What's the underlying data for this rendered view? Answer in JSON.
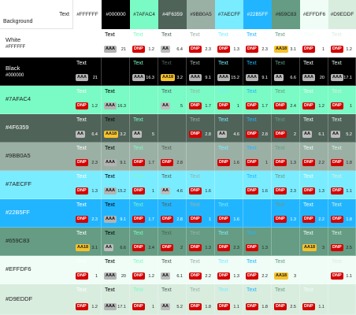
{
  "header": {
    "text_label": "Text",
    "background_label": "Background"
  },
  "colors": [
    {
      "hex": "#FFFFFF",
      "name": "White",
      "label": "#FFFFFF",
      "fg": "#222222"
    },
    {
      "hex": "#000000",
      "name": "Black",
      "label": "#000000",
      "fg": "#ffffff"
    },
    {
      "hex": "#7AFAC4",
      "name": "#7AFAC4",
      "label": "",
      "fg": "#222222"
    },
    {
      "hex": "#4F6359",
      "name": "#4F6359",
      "label": "",
      "fg": "#ffffff"
    },
    {
      "hex": "#9BB0A5",
      "name": "#9BB0A5",
      "label": "",
      "fg": "#222222"
    },
    {
      "hex": "#7AECFF",
      "name": "#7AECFF",
      "label": "",
      "fg": "#222222"
    },
    {
      "hex": "#22B5FF",
      "name": "#22B5FF",
      "label": "",
      "fg": "#ffffff"
    },
    {
      "hex": "#659C83",
      "name": "#659C83",
      "label": "",
      "fg": "#222222"
    },
    {
      "hex": "#EFFDF6",
      "name": "#EFFDF6",
      "label": "",
      "fg": "#222222"
    },
    {
      "hex": "#D9EDDF",
      "name": "#D9EDDF",
      "label": "",
      "fg": "#222222"
    }
  ],
  "sample_text": "Text",
  "grid": [
    [
      null,
      {
        "b": "AAA",
        "r": "21"
      },
      {
        "b": "DNP",
        "r": "1.2"
      },
      {
        "b": "AA",
        "r": "6.4"
      },
      {
        "b": "DNP",
        "r": "2.3"
      },
      {
        "b": "DNP",
        "r": "1.3"
      },
      {
        "b": "DNP",
        "r": "2.3"
      },
      {
        "b": "AA18",
        "r": "3.1"
      },
      {
        "b": "DNP",
        "r": "1"
      },
      {
        "b": "DNP",
        "r": "1.2"
      }
    ],
    [
      {
        "b": "AAA",
        "r": "21"
      },
      null,
      {
        "b": "AAA",
        "r": "16.3"
      },
      {
        "b": "AA18",
        "r": "3.2"
      },
      {
        "b": "AAA",
        "r": "9.1"
      },
      {
        "b": "AAA",
        "r": "15.2"
      },
      {
        "b": "AAA",
        "r": "9.1"
      },
      {
        "b": "AA",
        "r": "6.6"
      },
      {
        "b": "AAA",
        "r": "20"
      },
      {
        "b": "AAA",
        "r": "17.1"
      }
    ],
    [
      {
        "b": "DNP",
        "r": "1.2"
      },
      {
        "b": "AAA",
        "r": "16.3"
      },
      null,
      {
        "b": "AA",
        "r": "5"
      },
      {
        "b": "DNP",
        "r": "1.7"
      },
      {
        "b": "DNP",
        "r": "1"
      },
      {
        "b": "DNP",
        "r": "1.7"
      },
      {
        "b": "DNP",
        "r": "2.4"
      },
      {
        "b": "DNP",
        "r": "1.2"
      },
      {
        "b": "DNP",
        "r": "1"
      }
    ],
    [
      {
        "b": "AA",
        "r": "6.4"
      },
      {
        "b": "AA18",
        "r": "3.2"
      },
      {
        "b": "AA",
        "r": "5"
      },
      null,
      {
        "b": "DNP",
        "r": "2.8"
      },
      {
        "b": "AA",
        "r": "4.6"
      },
      {
        "b": "DNP",
        "r": "2.8"
      },
      {
        "b": "DNP",
        "r": "2"
      },
      {
        "b": "AA",
        "r": "6.1"
      },
      {
        "b": "AA",
        "r": "5.2"
      }
    ],
    [
      {
        "b": "DNP",
        "r": "2.3"
      },
      {
        "b": "AAA",
        "r": "9.1"
      },
      {
        "b": "DNP",
        "r": "1.7"
      },
      {
        "b": "DNP",
        "r": "2.8"
      },
      null,
      {
        "b": "DNP",
        "r": "1.6"
      },
      {
        "b": "DNP",
        "r": "1"
      },
      {
        "b": "DNP",
        "r": "1.3"
      },
      {
        "b": "DNP",
        "r": "2.2"
      },
      {
        "b": "DNP",
        "r": "1.8"
      }
    ],
    [
      {
        "b": "DNP",
        "r": "1.3"
      },
      {
        "b": "AAA",
        "r": "15.2"
      },
      {
        "b": "DNP",
        "r": "1"
      },
      {
        "b": "AA",
        "r": "4.6"
      },
      {
        "b": "DNP",
        "r": "1.6"
      },
      null,
      {
        "b": "DNP",
        "r": "1.6"
      },
      {
        "b": "DNP",
        "r": "2.3"
      },
      {
        "b": "DNP",
        "r": "1.3"
      },
      {
        "b": "DNP",
        "r": "1.1"
      }
    ],
    [
      {
        "b": "DNP",
        "r": "2.3"
      },
      {
        "b": "AAA",
        "r": "9.1"
      },
      {
        "b": "DNP",
        "r": "1.7"
      },
      {
        "b": "DNP",
        "r": "2.8"
      },
      {
        "b": "DNP",
        "r": "1"
      },
      {
        "b": "DNP",
        "r": "1.6"
      },
      null,
      {
        "b": "DNP",
        "r": "1.3"
      },
      {
        "b": "DNP",
        "r": "2.2"
      },
      {
        "b": "DNP",
        "r": "1.8"
      }
    ],
    [
      {
        "b": "AA18",
        "r": "3.1"
      },
      {
        "b": "AA",
        "r": "6.6"
      },
      {
        "b": "DNP",
        "r": "2.4"
      },
      {
        "b": "DNP",
        "r": "2"
      },
      {
        "b": "DNP",
        "r": "1.3"
      },
      {
        "b": "DNP",
        "r": "2.3"
      },
      {
        "b": "DNP",
        "r": "1.3"
      },
      null,
      {
        "b": "AA18",
        "r": "3"
      },
      {
        "b": "DNP",
        "r": "2.5"
      }
    ],
    [
      {
        "b": "DNP",
        "r": "1"
      },
      {
        "b": "AAA",
        "r": "20"
      },
      {
        "b": "DNP",
        "r": "1.2"
      },
      {
        "b": "AA",
        "r": "6.1"
      },
      {
        "b": "DNP",
        "r": "2.2"
      },
      {
        "b": "DNP",
        "r": "1.3"
      },
      {
        "b": "DNP",
        "r": "2.2"
      },
      {
        "b": "AA18",
        "r": "3"
      },
      null,
      {
        "b": "DNP",
        "r": "1.1"
      }
    ],
    [
      {
        "b": "DNP",
        "r": "1.2"
      },
      {
        "b": "AAA",
        "r": "17.1"
      },
      {
        "b": "DNP",
        "r": "1"
      },
      {
        "b": "AA",
        "r": "5.2"
      },
      {
        "b": "DNP",
        "r": "1.8"
      },
      {
        "b": "DNP",
        "r": "1.1"
      },
      {
        "b": "DNP",
        "r": "1.8"
      },
      {
        "b": "DNP",
        "r": "2.5"
      },
      {
        "b": "DNP",
        "r": "1.1"
      },
      null
    ]
  ]
}
